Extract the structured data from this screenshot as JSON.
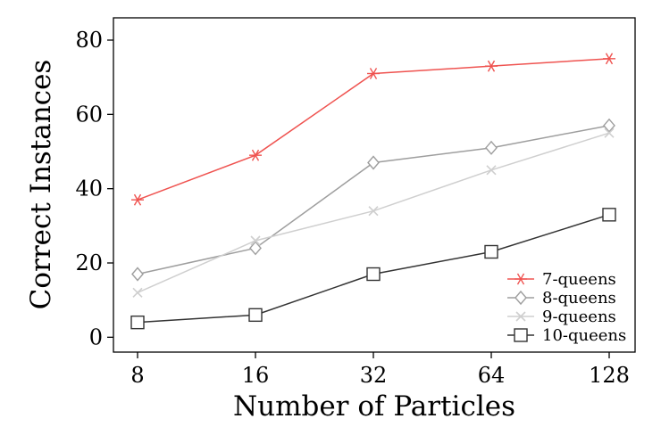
{
  "chart_data": {
    "type": "line",
    "x": [
      8,
      16,
      32,
      64,
      128
    ],
    "x_tick_labels": [
      "8",
      "16",
      "32",
      "64",
      "128"
    ],
    "y_ticks": [
      0,
      20,
      40,
      60,
      80
    ],
    "ylim": [
      -4,
      86
    ],
    "xscale": "log2",
    "xlabel": "Number of Particles",
    "ylabel": "Correct Instances",
    "grid": false,
    "legend_position": "bottom-right",
    "series": [
      {
        "name": "7-queens",
        "values": [
          37,
          49,
          71,
          73,
          75
        ],
        "color": "#ef5350",
        "marker": "star"
      },
      {
        "name": "8-queens",
        "values": [
          17,
          24,
          47,
          51,
          57
        ],
        "color": "#9e9e9e",
        "marker": "diamond"
      },
      {
        "name": "9-queens",
        "values": [
          12,
          26,
          34,
          45,
          55
        ],
        "color": "#cfcfcf",
        "marker": "x"
      },
      {
        "name": "10-queens",
        "values": [
          4,
          6,
          17,
          23,
          33
        ],
        "color": "#333333",
        "marker": "square"
      }
    ]
  }
}
